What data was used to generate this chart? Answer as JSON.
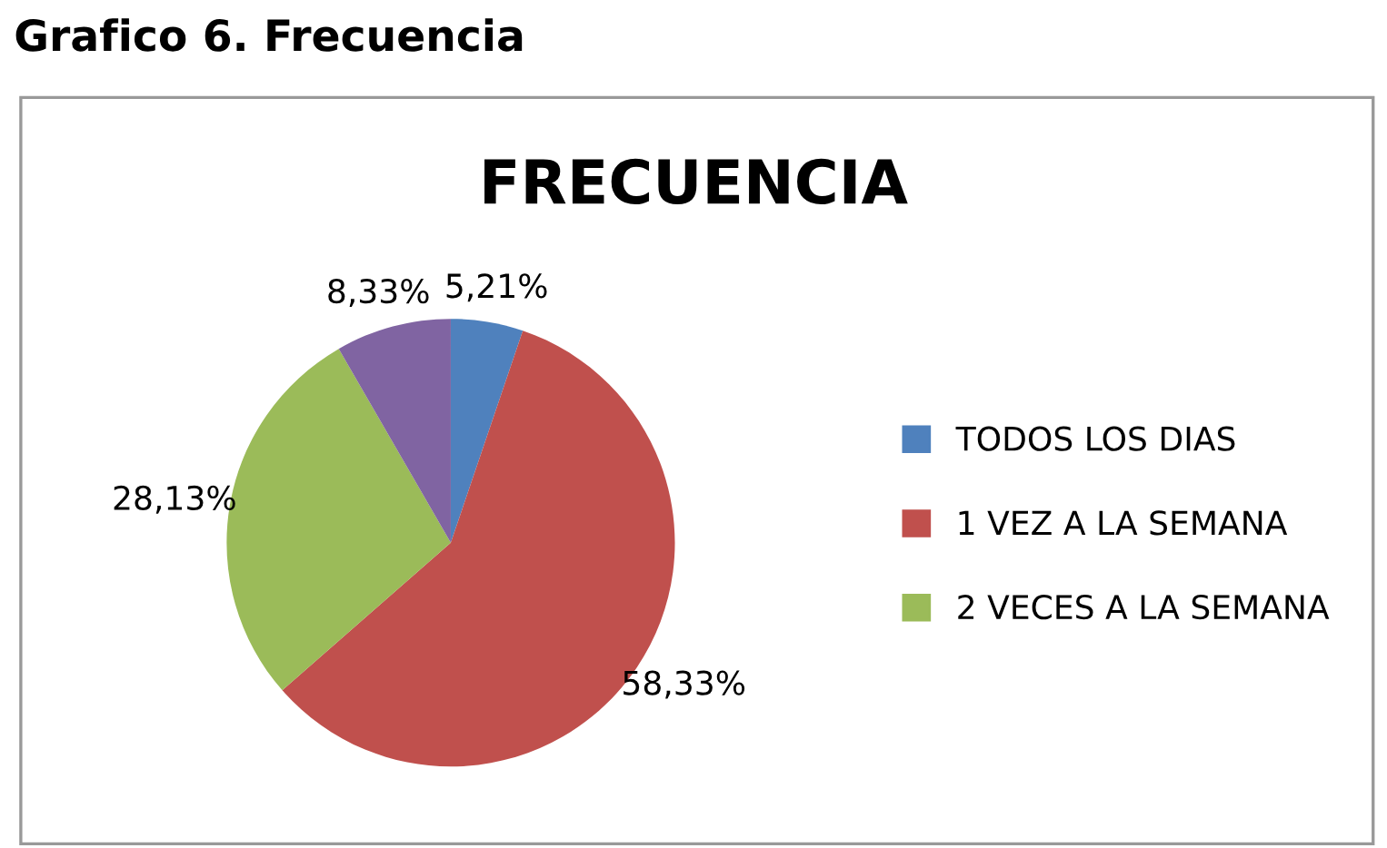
{
  "chart_data": {
    "type": "pie",
    "title": "FRECUENCIA",
    "subtitle": "Grafico 6. Frecuencia",
    "categories": [
      "TODOS LOS DIAS",
      "1 VEZ A LA SEMANA",
      "2 VECES A LA SEMANA",
      null
    ],
    "values": [
      5.21,
      58.33,
      28.13,
      8.33
    ],
    "colors": [
      "#4f81bd",
      "#c0504d",
      "#9bbb59",
      "#8064a2"
    ],
    "value_labels": [
      "5,21%",
      "58,33%",
      "28,13%",
      "8,33%"
    ],
    "legend": "right"
  }
}
